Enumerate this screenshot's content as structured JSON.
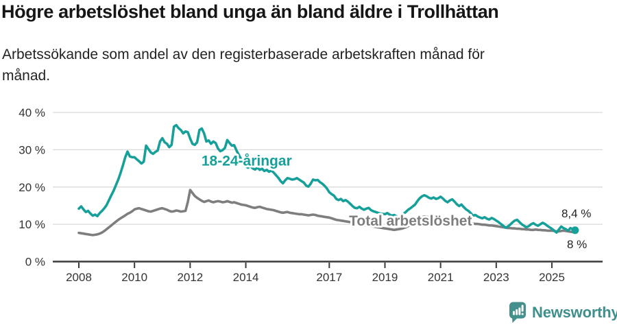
{
  "header": {
    "title": "Högre arbetslöshet bland unga än bland äldre i Trollhättan",
    "subtitle_line1": "Arbetssökande som andel av den registerbaserade arbetskraften månad för",
    "subtitle_line2": "månad."
  },
  "footer": {
    "brand": "Newsworthy"
  },
  "colors": {
    "accent_teal": "#16a099",
    "line_gray": "#7e7e7e",
    "grid": "#d9d9d9",
    "axis": "#3a3a3a",
    "tick_text": "#333333",
    "value_text": "#222222",
    "logo_teal": "#44908c"
  },
  "chart_data": {
    "type": "line",
    "title": "Högre arbetslöshet bland unga än bland äldre i Trollhättan",
    "subtitle": "Arbetssökande som andel av den registerbaserade arbetskraften månad för månad.",
    "x_axis": {
      "ticks": [
        2008,
        2010,
        2012,
        2014,
        2017,
        2019,
        2021,
        2023,
        2025
      ],
      "range": [
        2008.0,
        2025.83
      ]
    },
    "y_axis": {
      "ticks": [
        0,
        10,
        20,
        30,
        40
      ],
      "suffix": " %",
      "range": [
        0,
        42
      ],
      "grid": true
    },
    "legend_position": "inline-labels",
    "series": [
      {
        "id": "youth",
        "name": "18-24-åringar",
        "color": "#16a099",
        "start_year": 2008,
        "points_per_year": 12,
        "end_label": "8,4 %",
        "end_dot": true,
        "values": [
          14.2,
          14.8,
          14.0,
          13.3,
          13.6,
          12.9,
          12.3,
          12.6,
          12.2,
          13.0,
          13.6,
          14.3,
          15.2,
          16.5,
          17.8,
          19.0,
          20.5,
          22.0,
          23.8,
          25.8,
          28.0,
          29.5,
          28.2,
          28.0,
          28.0,
          27.4,
          26.9,
          26.3,
          26.8,
          31.1,
          30.2,
          29.3,
          28.9,
          29.4,
          29.8,
          32.2,
          33.1,
          32.0,
          31.6,
          30.7,
          31.3,
          36.2,
          36.6,
          35.8,
          35.3,
          34.4,
          34.9,
          34.7,
          33.0,
          31.6,
          31.3,
          32.0,
          35.3,
          35.7,
          34.4,
          32.2,
          32.5,
          31.6,
          32.2,
          31.8,
          30.3,
          29.6,
          29.9,
          30.5,
          32.6,
          31.8,
          31.1,
          31.2,
          29.8,
          28.6,
          27.4,
          26.4,
          25.5,
          25.2,
          25.6,
          25.0,
          24.7,
          25.2,
          24.6,
          24.9,
          24.3,
          24.6,
          24.1,
          24.4,
          23.9,
          23.2,
          22.5,
          21.6,
          21.0,
          21.8,
          22.4,
          22.2,
          22.0,
          22.1,
          22.4,
          22.0,
          21.6,
          21.2,
          20.4,
          20.1,
          20.9,
          22.0,
          21.8,
          21.9,
          21.3,
          20.9,
          20.3,
          19.6,
          18.6,
          18.1,
          17.7,
          16.8,
          16.5,
          16.8,
          16.2,
          16.5,
          16.1,
          15.5,
          14.9,
          14.4,
          14.3,
          14.7,
          14.2,
          13.9,
          14.2,
          14.4,
          13.8,
          13.5,
          13.3,
          13.1,
          12.9,
          12.8,
          12.7,
          13.0,
          12.6,
          12.3,
          12.5,
          12.1,
          11.9,
          12.2,
          12.8,
          13.3,
          13.9,
          14.3,
          14.8,
          15.3,
          16.2,
          17.0,
          17.5,
          17.8,
          17.5,
          17.1,
          16.9,
          17.2,
          16.8,
          17.0,
          17.4,
          16.9,
          16.3,
          15.9,
          16.4,
          16.7,
          16.1,
          15.4,
          14.9,
          15.3,
          14.6,
          14.0,
          13.6,
          13.0,
          12.3,
          12.5,
          12.1,
          11.8,
          11.6,
          11.9,
          11.5,
          11.3,
          11.7,
          11.4,
          11.0,
          10.6,
          10.1,
          9.6,
          9.1,
          9.4,
          9.9,
          10.5,
          11.0,
          11.2,
          10.6,
          10.0,
          9.6,
          9.2,
          9.5,
          10.0,
          10.3,
          9.9,
          9.6,
          10.0,
          10.4,
          10.1,
          9.6,
          9.2,
          8.8,
          8.3,
          7.8,
          8.6,
          9.4,
          9.0,
          8.7,
          8.3,
          9.0,
          8.7,
          8.4
        ]
      },
      {
        "id": "total",
        "name": "Total arbetslöshet",
        "color": "#7e7e7e",
        "start_year": 2008,
        "points_per_year": 12,
        "end_label": "8 %",
        "end_dot": false,
        "values": [
          7.7,
          7.6,
          7.5,
          7.4,
          7.3,
          7.2,
          7.1,
          7.2,
          7.3,
          7.5,
          7.8,
          8.2,
          8.7,
          9.2,
          9.7,
          10.2,
          10.7,
          11.2,
          11.6,
          12.0,
          12.4,
          12.8,
          13.1,
          13.5,
          14.0,
          14.2,
          14.3,
          14.1,
          13.9,
          13.7,
          13.5,
          13.4,
          13.6,
          13.8,
          14.0,
          14.2,
          14.3,
          14.1,
          13.9,
          13.6,
          13.4,
          13.5,
          13.7,
          13.6,
          13.4,
          13.5,
          13.6,
          16.0,
          19.2,
          18.4,
          17.6,
          17.1,
          16.7,
          16.3,
          16.0,
          16.2,
          16.4,
          16.1,
          15.9,
          16.1,
          16.2,
          16.1,
          15.9,
          16.0,
          16.2,
          16.0,
          15.8,
          15.9,
          15.7,
          15.5,
          15.3,
          15.2,
          15.1,
          14.9,
          14.7,
          14.5,
          14.4,
          14.6,
          14.7,
          14.5,
          14.3,
          14.1,
          14.0,
          13.9,
          13.8,
          13.6,
          13.4,
          13.2,
          13.1,
          13.2,
          13.3,
          13.1,
          13.0,
          12.9,
          12.8,
          12.7,
          12.7,
          12.6,
          12.5,
          12.4,
          12.5,
          12.6,
          12.5,
          12.3,
          12.2,
          12.1,
          12.0,
          11.9,
          11.8,
          11.6,
          11.4,
          11.2,
          11.1,
          11.0,
          10.9,
          10.8,
          10.7,
          10.6,
          10.5,
          10.4,
          10.2,
          10.1,
          10.0,
          9.8,
          9.7,
          9.6,
          9.5,
          9.4,
          9.3,
          9.2,
          9.1,
          9.0,
          8.9,
          8.8,
          8.7,
          8.6,
          8.5,
          8.6,
          8.7,
          8.8,
          9.0,
          9.2,
          9.5,
          9.8,
          10.2,
          10.6,
          11.1,
          11.6,
          11.9,
          12.1,
          12.0,
          11.9,
          11.8,
          11.7,
          11.6,
          11.5,
          11.4,
          11.3,
          11.2,
          11.0,
          10.9,
          10.8,
          10.7,
          10.6,
          10.6,
          10.5,
          10.5,
          10.4,
          10.4,
          10.3,
          10.2,
          10.1,
          10.1,
          10.0,
          9.9,
          9.9,
          9.8,
          9.7,
          9.7,
          9.6,
          9.5,
          9.4,
          9.3,
          9.2,
          9.1,
          9.0,
          9.0,
          8.9,
          8.9,
          8.8,
          8.8,
          8.7,
          8.7,
          8.6,
          8.6,
          8.5,
          8.5,
          8.6,
          8.5,
          8.5,
          8.4,
          8.4,
          8.3,
          8.3,
          8.3,
          8.2,
          8.1,
          8.1,
          8.2,
          8.3,
          8.2,
          8.1,
          8.0,
          7.9,
          8.0
        ]
      }
    ],
    "annotations": [
      {
        "name": "series-label-youth",
        "text": "18-24-åringar",
        "year": 2014.03,
        "value": 27.0,
        "color": "#16a099",
        "size": 21,
        "bold": true,
        "anchor": "middle"
      },
      {
        "name": "series-label-total",
        "text": "Total arbetslöshet",
        "year": 2019.92,
        "value": 10.9,
        "color": "#7e7e7e",
        "size": 21,
        "bold": true,
        "anchor": "middle"
      },
      {
        "name": "end-value-label-youth",
        "text": "8,4 %",
        "year": 2025.88,
        "value": 12.9,
        "color": "#222222",
        "size": 17,
        "bold": false,
        "anchor": "middle"
      },
      {
        "name": "end-value-label-total",
        "text": "8 %",
        "year": 2025.9,
        "value": 4.6,
        "color": "#222222",
        "size": 17,
        "bold": false,
        "anchor": "middle"
      }
    ]
  }
}
